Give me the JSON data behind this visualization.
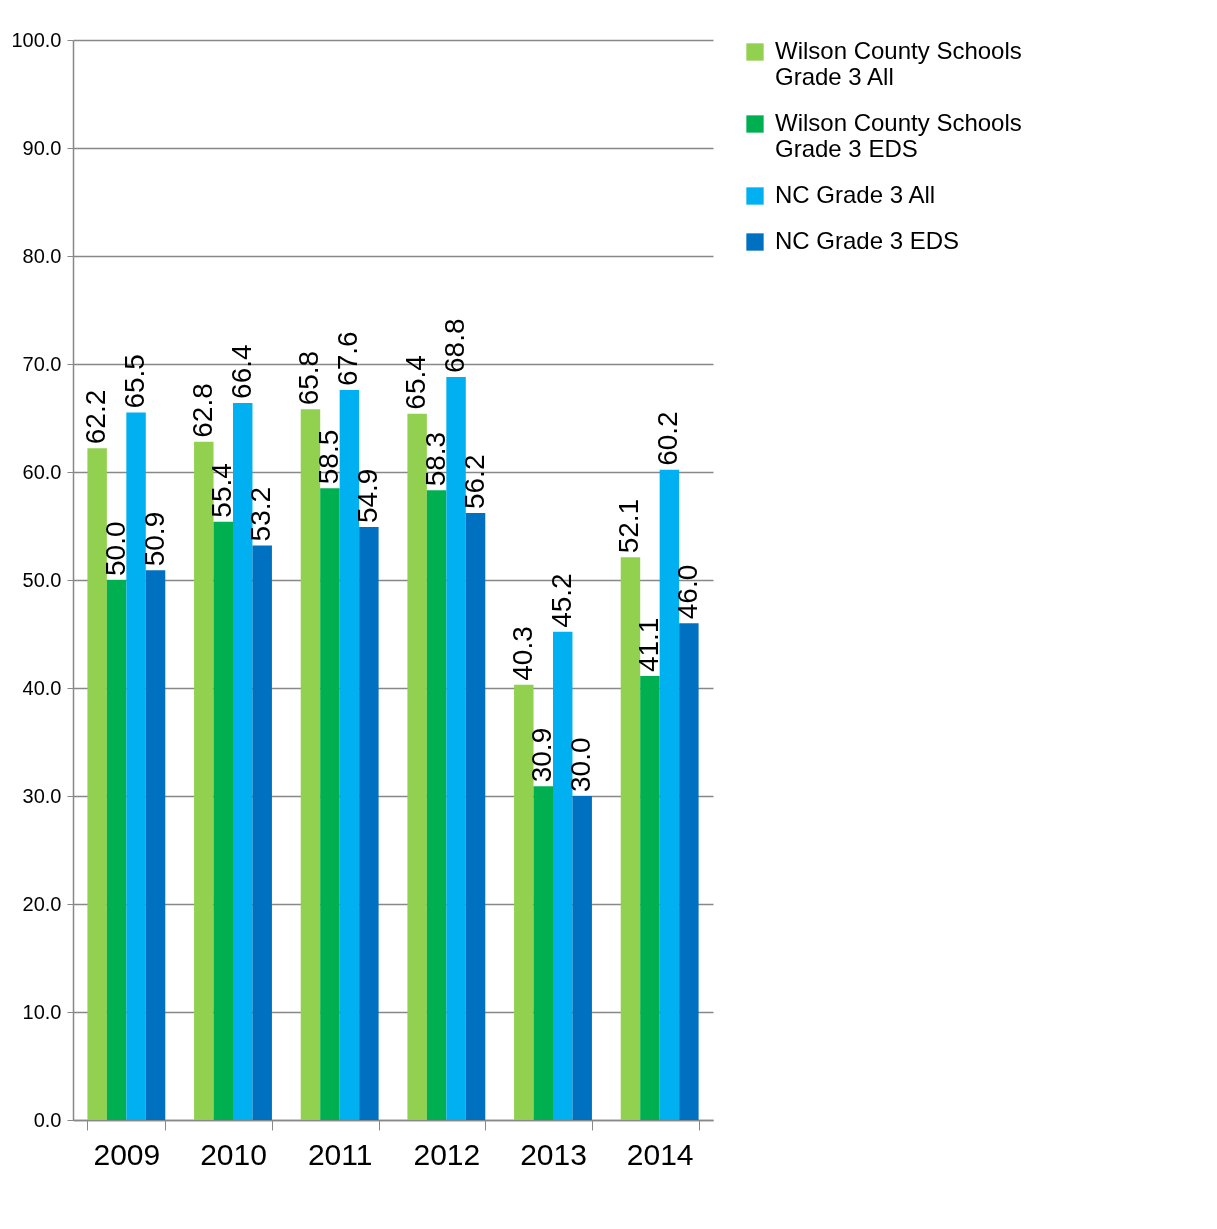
{
  "chart_data": {
    "type": "bar",
    "categories": [
      "2009",
      "2010",
      "2011",
      "2012",
      "2013",
      "2014"
    ],
    "series": [
      {
        "name": "Wilson County Schools Grade 3 All",
        "color": "#92d050",
        "values": [
          62.2,
          62.8,
          65.8,
          65.4,
          40.3,
          52.1
        ],
        "value_labels": [
          "62.2",
          "62.8",
          "65.8",
          "65.4",
          "40.3",
          "52.1"
        ]
      },
      {
        "name": "Wilson County Schools Grade 3 EDS",
        "color": "#00b050",
        "values": [
          50.0,
          55.4,
          58.5,
          58.3,
          30.9,
          41.1
        ],
        "value_labels": [
          "50.0",
          "55.4",
          "58.5",
          "58.3",
          "30.9",
          "41.1"
        ]
      },
      {
        "name": "NC Grade 3 All",
        "color": "#00b0f0",
        "values": [
          65.5,
          66.4,
          67.6,
          68.8,
          45.2,
          60.2
        ],
        "value_labels": [
          "65.5",
          "66.4",
          "67.6",
          "68.8",
          "45.2",
          "60.2"
        ]
      },
      {
        "name": "NC Grade 3 EDS",
        "color": "#0070c0",
        "values": [
          50.9,
          53.2,
          54.9,
          56.2,
          30.0,
          46.0
        ],
        "value_labels": [
          "50.9",
          "53.2",
          "54.9",
          "56.2",
          "30.0",
          "46.0"
        ]
      }
    ],
    "ylim": [
      0,
      100
    ],
    "yticks": [
      {
        "value": 0,
        "label": "0.0"
      },
      {
        "value": 10,
        "label": "10.0"
      },
      {
        "value": 20,
        "label": "20.0"
      },
      {
        "value": 30,
        "label": "30.0"
      },
      {
        "value": 40,
        "label": "40.0"
      },
      {
        "value": 50,
        "label": "50.0"
      },
      {
        "value": 60,
        "label": "60.0"
      },
      {
        "value": 70,
        "label": "70.0"
      },
      {
        "value": 80,
        "label": "80.0"
      },
      {
        "value": 90,
        "label": "90.0"
      },
      {
        "value": 100,
        "label": "100.0"
      }
    ],
    "grid": "y",
    "legend": "right"
  }
}
